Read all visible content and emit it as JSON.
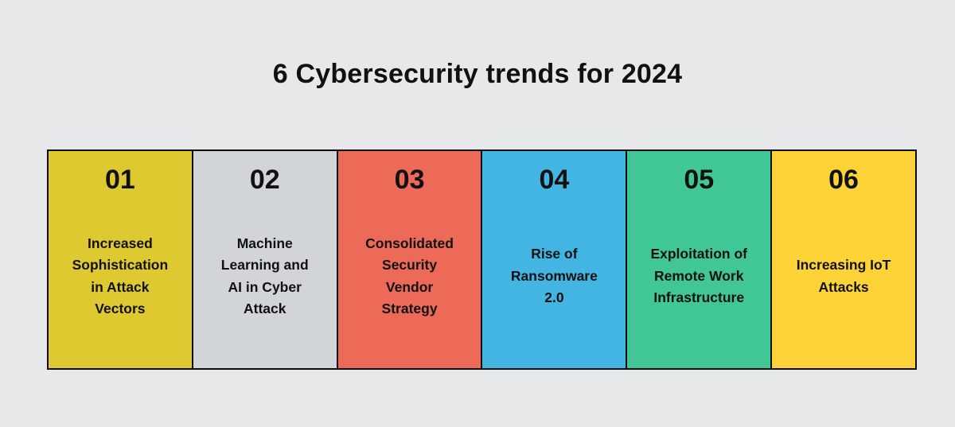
{
  "page": {
    "title": "6 Cybersecurity trends for 2024",
    "background": "#e7e8ea",
    "border_color": "#0d0d0d",
    "text_color": "#111111"
  },
  "cards": [
    {
      "number": "01",
      "label": "Increased\nSophistication\nin Attack\nVectors",
      "color": "#dfc930"
    },
    {
      "number": "02",
      "label": "Machine\nLearning and\nAI in Cyber\nAttack",
      "color": "#d1d5d8"
    },
    {
      "number": "03",
      "label": "Consolidated\nSecurity\nVendor\nStrategy",
      "color": "#ec6a57"
    },
    {
      "number": "04",
      "label": "Rise of\nRansomware\n2.0",
      "color": "#42b5e2"
    },
    {
      "number": "05",
      "label": "Exploitation of\nRemote Work\nInfrastructure",
      "color": "#40c795"
    },
    {
      "number": "06",
      "label": "Increasing IoT\nAttacks",
      "color": "#fdd338"
    }
  ]
}
